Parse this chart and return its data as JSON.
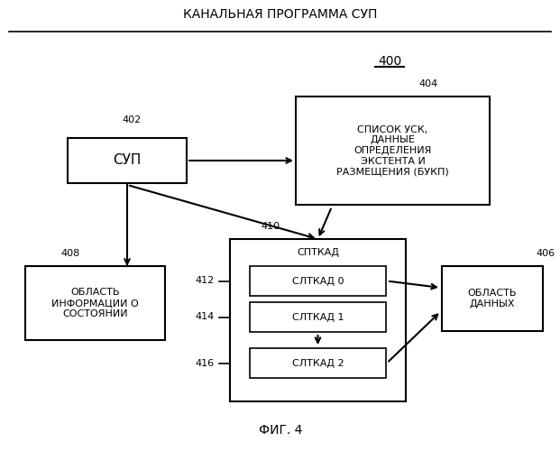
{
  "title": "КАНАЛЬНАЯ ПРОГРАММА СУП",
  "fig_label": "ФИГ. 4",
  "background_color": "#ffffff",
  "line_color": "#000000",
  "box_color": "#ffffff",
  "text_color": "#000000",
  "label_400": "400",
  "label_402": "402",
  "label_404": "404",
  "label_406": "406",
  "label_408": "408",
  "label_410": "410",
  "label_412": "412",
  "label_414": "414",
  "label_416": "416",
  "sup_text": "СУП",
  "box404_text": "СПИСОК УСК,\nДАННЫЕ\nОПРЕДЕЛЕНИЯ\nЭКСТЕНТА И\nРАЗМЕЩЕНИЯ (БУКП)",
  "box408_text": "ОБЛАСТЬ\nИНФОРМАЦИИ О\nСОСТОЯНИИ",
  "box406_text": "ОБЛАСТЬ\nДАННЫХ",
  "sptkad_text": "СПТКАД",
  "sltkad0_text": "СЛТКАД 0",
  "sltkad1_text": "СЛТКАД 1",
  "sltkad2_text": "СЛТКАД 2"
}
